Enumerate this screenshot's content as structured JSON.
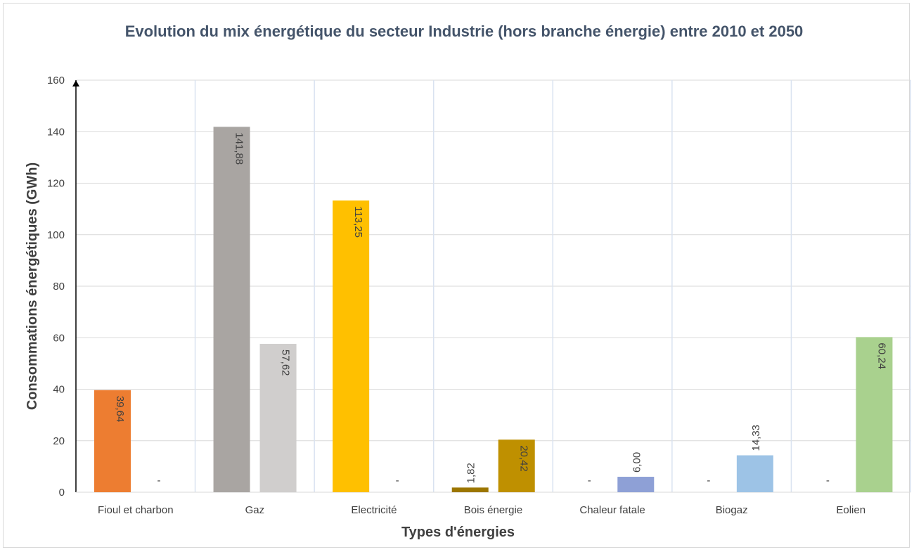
{
  "chart_data": {
    "type": "bar",
    "title": "Evolution du mix énergétique du secteur Industrie (hors branche énergie) entre 2010 et 2050",
    "x_label": "Types d'énergies",
    "y_label": "Consommations énergétiques (GWh)",
    "categories": [
      "Fioul et charbon",
      "Gaz",
      "Electricité",
      "Bois énergie",
      "Chaleur fatale",
      "Biogaz",
      "Eolien"
    ],
    "series": [
      {
        "colors": [
          "#ed7d31",
          "#a9a5a2",
          "#ffc000",
          "#9c7600",
          "#8ea0d6",
          "#9dc3e6",
          "#a9d18e"
        ],
        "values": [
          39.64,
          141.88,
          113.25,
          1.82,
          0,
          0,
          0
        ],
        "value_labels": [
          "39,64",
          "141,88",
          "113,25",
          "1,82",
          "-",
          "-",
          "-"
        ]
      },
      {
        "colors": [
          "#ed7d31",
          "#d0cecd",
          "#ffc000",
          "#bf9000",
          "#8ea0d6",
          "#9dc3e6",
          "#a9d18e"
        ],
        "values": [
          0,
          57.62,
          0,
          20.42,
          6.0,
          14.33,
          60.24
        ],
        "value_labels": [
          "-",
          "57,62",
          "-",
          "20,42",
          "6,00",
          "14,33",
          "60,24"
        ]
      }
    ],
    "ylim": [
      0,
      160
    ],
    "yticks": [
      0,
      20,
      40,
      60,
      80,
      100,
      120,
      140,
      160
    ],
    "grid": true
  }
}
